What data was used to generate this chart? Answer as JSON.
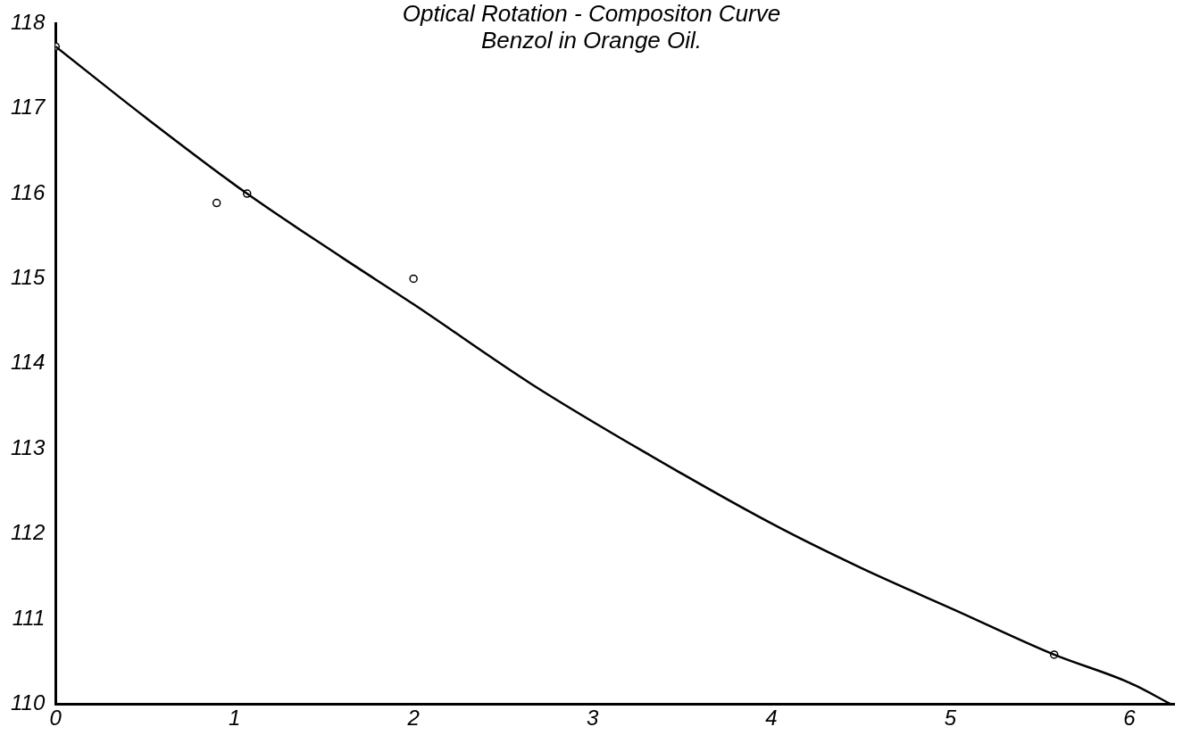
{
  "chart_data": {
    "type": "scatter",
    "title": "Optical Rotation - Compositon Curve",
    "subtitle": "Benzol in Orange Oil.",
    "xlim": [
      0,
      6.25
    ],
    "xticks": [
      0,
      1,
      2,
      3,
      4,
      5,
      6
    ],
    "ylim": [
      110,
      118
    ],
    "yticks": [
      110,
      111,
      112,
      113,
      114,
      115,
      116,
      117,
      118
    ],
    "grid": false,
    "legend": false,
    "series": [
      {
        "type": "line",
        "color": "#000000",
        "marker": "none",
        "x": [
          0,
          0.5,
          1.07,
          1.6,
          2.0,
          2.66,
          3.3,
          4.02,
          4.5,
          5.03,
          5.58,
          6.0,
          6.23
        ],
        "values": [
          117.73,
          116.9,
          116.0,
          115.25,
          114.7,
          113.76,
          112.95,
          112.1,
          111.6,
          111.1,
          110.58,
          110.25,
          110.0
        ]
      },
      {
        "color": "#000000",
        "marker": "circle",
        "x": [
          0,
          0.9,
          1.07,
          2.0,
          5.58
        ],
        "values": [
          117.73,
          115.89,
          116.0,
          115.0,
          110.58
        ]
      }
    ]
  }
}
